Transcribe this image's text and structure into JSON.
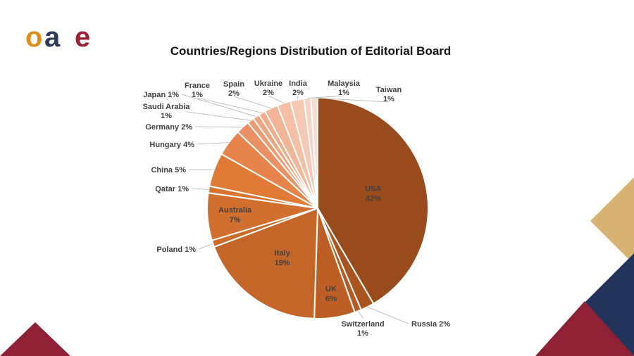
{
  "logo": {
    "letters": [
      "o",
      "a",
      "e"
    ],
    "colors": {
      "o": "#e08c1c",
      "a": "#2c3a5c",
      "e": "#9c2035"
    }
  },
  "chart_data": {
    "type": "pie",
    "title": "Countries/Regions Distribution of Editorial Board",
    "slices": [
      {
        "name": "USA",
        "pct_label": "42%",
        "value": 42,
        "color": "#9a4b1c",
        "label_side": "inside"
      },
      {
        "name": "Russia",
        "pct_label": "2%",
        "value": 2,
        "color": "#a9531e",
        "label_side": "outside-right"
      },
      {
        "name": "Switzerland",
        "pct_label": "1%",
        "value": 1,
        "color": "#b45a22",
        "label_side": "outside-bottom"
      },
      {
        "name": "UK",
        "pct_label": "6%",
        "value": 6,
        "color": "#bd5f25",
        "label_side": "inside"
      },
      {
        "name": "Italy",
        "pct_label": "19%",
        "value": 19,
        "color": "#c46628",
        "label_side": "inside"
      },
      {
        "name": "Poland",
        "pct_label": "1%",
        "value": 1,
        "color": "#cb6a2a",
        "label_side": "outside-left"
      },
      {
        "name": "Australia",
        "pct_label": "7%",
        "value": 7,
        "color": "#d16f2e",
        "label_side": "inside"
      },
      {
        "name": "Qatar",
        "pct_label": "1%",
        "value": 1,
        "color": "#d97531",
        "label_side": "outside-left"
      },
      {
        "name": "China",
        "pct_label": "5%",
        "value": 5,
        "color": "#e07a36",
        "label_side": "outside-left"
      },
      {
        "name": "Hungary",
        "pct_label": "4%",
        "value": 4,
        "color": "#e5834a",
        "label_side": "outside-left"
      },
      {
        "name": "Germany",
        "pct_label": "2%",
        "value": 2,
        "color": "#ea9065",
        "label_side": "outside-left"
      },
      {
        "name": "Saudi Arabia",
        "pct_label": "1%",
        "value": 1,
        "color": "#ed9b74",
        "label_side": "outside-left"
      },
      {
        "name": "Japan",
        "pct_label": "1%",
        "value": 1,
        "color": "#efa37e",
        "label_side": "outside-left"
      },
      {
        "name": "France",
        "pct_label": "1%",
        "value": 1,
        "color": "#f0ab88",
        "label_side": "outside-top"
      },
      {
        "name": "Spain",
        "pct_label": "2%",
        "value": 2,
        "color": "#f2b597",
        "label_side": "outside-top"
      },
      {
        "name": "Ukraine",
        "pct_label": "2%",
        "value": 2,
        "color": "#f4bfa5",
        "label_side": "outside-top"
      },
      {
        "name": "India",
        "pct_label": "2%",
        "value": 2,
        "color": "#f6c9b5",
        "label_side": "outside-top"
      },
      {
        "name": "Malaysia",
        "pct_label": "1%",
        "value": 1,
        "color": "#f8d3c4",
        "label_side": "outside-top"
      },
      {
        "name": "Taiwan",
        "pct_label": "1%",
        "value": 1,
        "color": "#fadcd0",
        "label_side": "outside-top"
      }
    ]
  },
  "decor": {
    "maroon": "#8e2134",
    "navy": "#22335c",
    "gold": "#d8b272"
  }
}
